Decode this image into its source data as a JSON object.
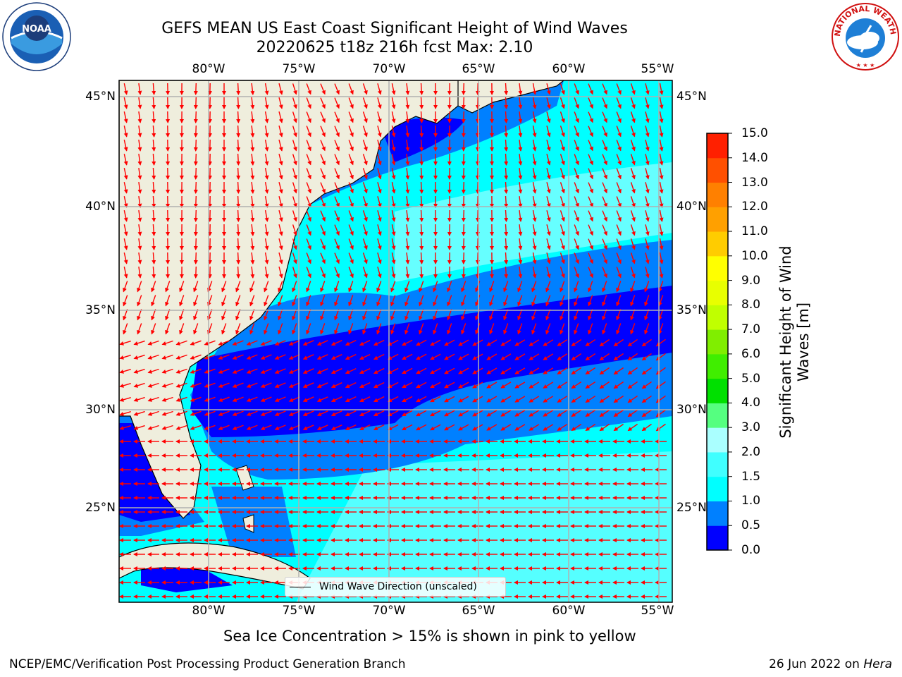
{
  "header": {
    "title_line1": "GEFS MEAN US East Coast Significant Height of Wind Waves",
    "title_line2": "20220625 t18z 216h fcst   Max: 2.10"
  },
  "map": {
    "lon_labels": [
      "80°W",
      "75°W",
      "70°W",
      "65°W",
      "60°W",
      "55°W"
    ],
    "lat_labels": [
      "45°N",
      "40°N",
      "35°N",
      "30°N",
      "25°N"
    ],
    "legend_label": "Wind Wave Direction (unscaled)",
    "land_color": "#efeedd",
    "arrow_color": "#ff0000"
  },
  "colorbar": {
    "label": "Significant Height of Wind Waves [m]",
    "ticks": [
      "0.0",
      "0.5",
      "1.0",
      "1.5",
      "2.0",
      "3.0",
      "4.0",
      "5.0",
      "6.0",
      "7.0",
      "8.0",
      "9.0",
      "10.0",
      "11.0",
      "12.0",
      "13.0",
      "14.0",
      "15.0"
    ],
    "colors": [
      "#0000ff",
      "#0080ff",
      "#00ffff",
      "#40ffff",
      "#aaffff",
      "#55ff80",
      "#00e000",
      "#40ee00",
      "#80ee00",
      "#c0ff00",
      "#e8ff00",
      "#ffff00",
      "#ffcc00",
      "#ffa000",
      "#ff8000",
      "#ff5000",
      "#ff2000"
    ]
  },
  "subnote": "Sea Ice Concentration > 15% is shown in pink to yellow",
  "footer": {
    "left": "NCEP/EMC/Verification Post Processing Product Generation Branch",
    "right_date": "26 Jun 2022 on",
    "right_host": "Hera"
  },
  "logos": {
    "noaa_text": "NOAA",
    "nws_text": "NATIONAL WEATHER SERVICE"
  }
}
